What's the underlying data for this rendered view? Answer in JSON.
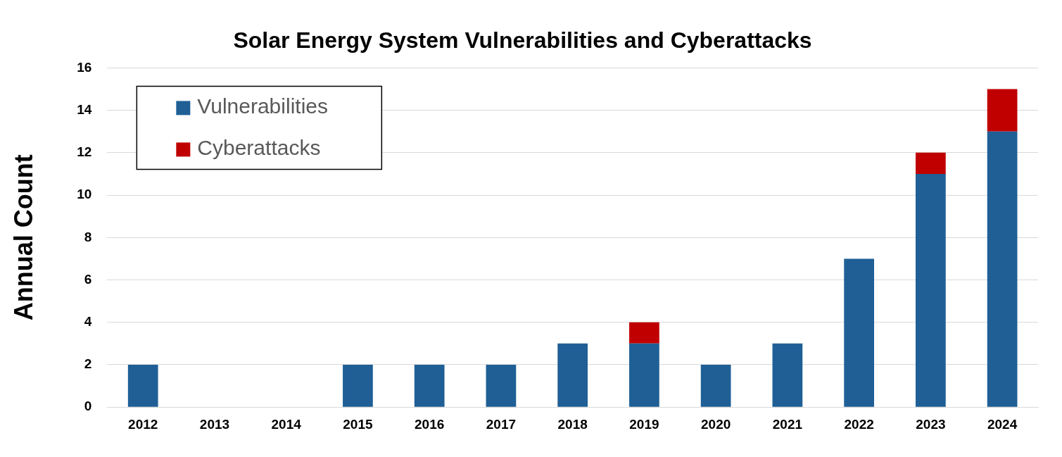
{
  "chart_data": {
    "type": "bar",
    "title": "Solar Energy System Vulnerabilities and Cyberattacks",
    "ylabel": "Annual Count",
    "categories": [
      "2012",
      "2013",
      "2014",
      "2015",
      "2016",
      "2017",
      "2018",
      "2019",
      "2020",
      "2021",
      "2022",
      "2023",
      "2024"
    ],
    "series": [
      {
        "name": "Vulnerabilities",
        "color": "#1f5f96",
        "values": [
          2,
          0,
          0,
          2,
          2,
          2,
          3,
          3,
          2,
          3,
          7,
          11,
          13
        ]
      },
      {
        "name": "Cyberattacks",
        "color": "#c00000",
        "values": [
          0,
          0,
          0,
          0,
          0,
          0,
          0,
          1,
          0,
          0,
          0,
          1,
          2
        ]
      }
    ],
    "stacked": true,
    "ylim": [
      0,
      16
    ],
    "yticks": [
      0,
      2,
      4,
      6,
      8,
      10,
      12,
      14,
      16
    ],
    "grid": "y",
    "legend": "top left"
  }
}
